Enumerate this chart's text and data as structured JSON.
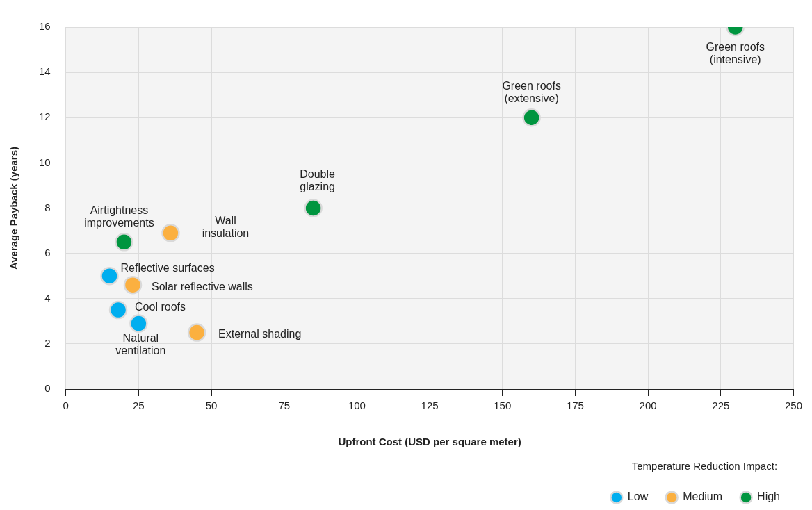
{
  "chart_data": {
    "type": "scatter",
    "xlabel": "Upfront Cost (USD per square meter)",
    "ylabel": "Average Payback (years)",
    "legend_title": "Temperature Reduction Impact:",
    "xlim": [
      0,
      250
    ],
    "xticks": [
      0,
      25,
      50,
      75,
      100,
      125,
      150,
      175,
      200,
      225,
      250
    ],
    "ylim": [
      0,
      16
    ],
    "yticks": [
      0,
      2,
      4,
      6,
      8,
      10,
      12,
      14,
      16
    ],
    "grid": true,
    "legend": "bottom right",
    "marker": "circle",
    "series": [
      {
        "name": "Low",
        "color": "#00aeef",
        "x": [
          15,
          18,
          25
        ],
        "values": [
          5,
          3.5,
          2.9
        ]
      },
      {
        "name": "Medium",
        "color": "#fbb040",
        "x": [
          36,
          23,
          45
        ],
        "values": [
          6.9,
          4.6,
          2.5
        ]
      },
      {
        "name": "High",
        "color": "#00953f",
        "x": [
          20,
          85,
          160,
          230
        ],
        "values": [
          6.5,
          8,
          12,
          16
        ]
      }
    ],
    "annotations": [
      {
        "text": "Green roofs\n(intensive)",
        "x": 230,
        "y": 16
      },
      {
        "text": "Green roofs\n(extensive)",
        "x": 160,
        "y": 12
      },
      {
        "text": "Double\nglazing",
        "x": 85,
        "y": 8
      },
      {
        "text": "Airtightness\nimprovements",
        "x": 20,
        "y": 6.5
      },
      {
        "text": "Wall\ninsulation",
        "x": 36,
        "y": 6.9
      },
      {
        "text": "Reflective surfaces",
        "x": 15,
        "y": 5
      },
      {
        "text": "Solar reflective walls",
        "x": 23,
        "y": 4.6
      },
      {
        "text": "Cool roofs",
        "x": 18,
        "y": 3.5
      },
      {
        "text": "Natural\nventilation",
        "x": 25,
        "y": 2.9
      },
      {
        "text": "External shading",
        "x": 45,
        "y": 2.5
      }
    ]
  }
}
